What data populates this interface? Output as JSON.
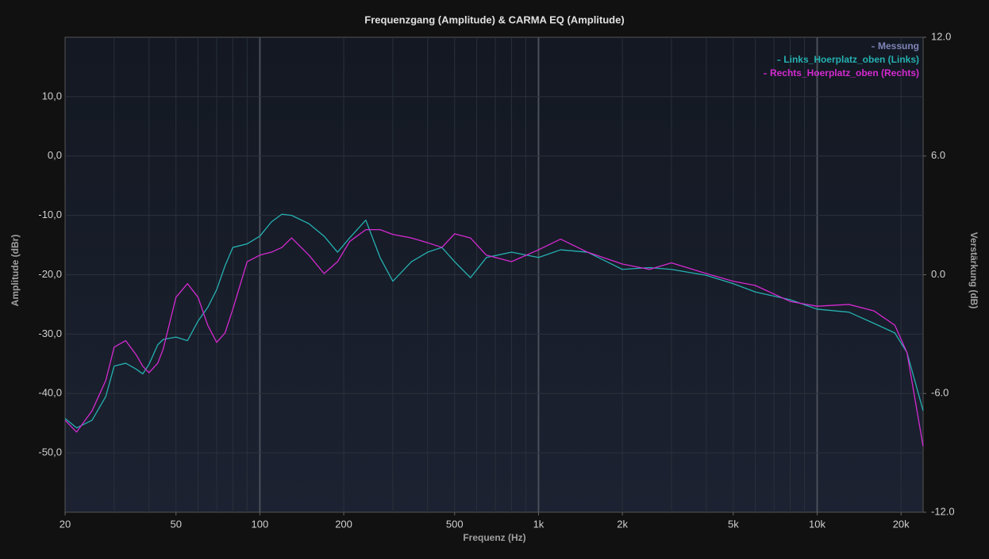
{
  "chart_data": {
    "type": "line",
    "title": "Frequenzgang (Amplitude) & CARMA EQ (Amplitude)",
    "xlabel": "Frequenz (Hz)",
    "ylabel": "Amplitude (dBr)",
    "y2label": "Verstärkung (dB)",
    "xscale": "log",
    "grid": true,
    "legend": "upper right",
    "xlim": [
      20,
      24000
    ],
    "xticks": [
      20,
      50,
      100,
      200,
      500,
      {
        "value": 1000,
        "label": "1k"
      },
      {
        "value": 2000,
        "label": "2k"
      },
      {
        "value": 5000,
        "label": "5k"
      },
      {
        "value": 10000,
        "label": "10k"
      },
      {
        "value": 20000,
        "label": "20k"
      }
    ],
    "ylim": [
      -60,
      20
    ],
    "yticks": [
      {
        "value": -50,
        "label": "-50,0"
      },
      {
        "value": -40,
        "label": "-40,0"
      },
      {
        "value": -30,
        "label": "-30,0"
      },
      {
        "value": -20,
        "label": "-20,0"
      },
      {
        "value": -10,
        "label": "-10,0"
      },
      {
        "value": 0,
        "label": "0,0"
      },
      {
        "value": 10,
        "label": "10,0"
      }
    ],
    "y2lim": [
      -12,
      12
    ],
    "y2ticks": [
      {
        "value": -12,
        "label": "-12.0"
      },
      {
        "value": -6,
        "label": "-6.0"
      },
      {
        "value": 0,
        "label": "0.0"
      },
      {
        "value": 6,
        "label": "6.0"
      },
      {
        "value": 12,
        "label": "12.0"
      }
    ],
    "x": [
      20,
      22,
      25,
      28,
      30,
      33,
      36,
      38,
      40,
      43,
      45,
      50,
      55,
      60,
      65,
      70,
      75,
      80,
      90,
      100,
      110,
      120,
      130,
      150,
      170,
      190,
      210,
      240,
      270,
      300,
      350,
      400,
      450,
      500,
      570,
      650,
      800,
      1000,
      1200,
      1500,
      2000,
      2500,
      3000,
      4000,
      5000,
      6000,
      8000,
      10000,
      13000,
      16000,
      19000,
      21000,
      24000
    ],
    "series": [
      {
        "name": "Messung",
        "color": "#7f85b8",
        "values": [
          null,
          null,
          null,
          null,
          null,
          null,
          null,
          null,
          null,
          null,
          null,
          null,
          null,
          null,
          null,
          null,
          null,
          null,
          null,
          null,
          null,
          null,
          null,
          null,
          null,
          null,
          null,
          null,
          null,
          null,
          null,
          null,
          null,
          null,
          null,
          null,
          null,
          null,
          null,
          null,
          null,
          null,
          null,
          null,
          null,
          null,
          null,
          null,
          null,
          null,
          null,
          null,
          null
        ]
      },
      {
        "name": "Links_Hoerplatz_oben (Links)",
        "color": "#25b0b0",
        "values": [
          -44.2,
          -45.8,
          -44.5,
          -40.5,
          -35.4,
          -34.9,
          -35.9,
          -36.7,
          -35.1,
          -31.8,
          -30.9,
          -30.5,
          -31.1,
          -27.8,
          -25.5,
          -22.5,
          -18.5,
          -15.4,
          -14.8,
          -13.5,
          -11.1,
          -9.8,
          -10.0,
          -11.4,
          -13.5,
          -16.2,
          -13.8,
          -10.8,
          -17.1,
          -21.1,
          -17.8,
          -16.2,
          -15.4,
          -17.8,
          -20.5,
          -17.1,
          -16.2,
          -17.1,
          -15.8,
          -16.2,
          -19.1,
          -18.8,
          -19.1,
          -20.1,
          -21.5,
          -22.9,
          -24.2,
          -25.8,
          -26.3,
          -28.2,
          -29.8,
          -33.1,
          -42.9
        ]
      },
      {
        "name": "Rechts_Hoerplatz_oben (Rechts)",
        "color": "#d42ad0",
        "values": [
          -44.5,
          -46.5,
          -42.9,
          -37.8,
          -32.2,
          -31.1,
          -33.5,
          -35.4,
          -36.5,
          -34.9,
          -32.5,
          -23.8,
          -21.5,
          -23.8,
          -28.5,
          -31.4,
          -29.8,
          -25.8,
          -17.8,
          -16.7,
          -16.2,
          -15.4,
          -13.8,
          -16.7,
          -19.8,
          -17.8,
          -14.4,
          -12.4,
          -12.4,
          -13.2,
          -13.8,
          -14.6,
          -15.4,
          -13.1,
          -13.8,
          -16.7,
          -17.8,
          -15.8,
          -14.0,
          -16.2,
          -18.2,
          -19.1,
          -18.0,
          -19.8,
          -21.1,
          -21.8,
          -24.5,
          -25.3,
          -25.0,
          -26.1,
          -28.5,
          -33.1,
          -48.9
        ]
      }
    ]
  }
}
